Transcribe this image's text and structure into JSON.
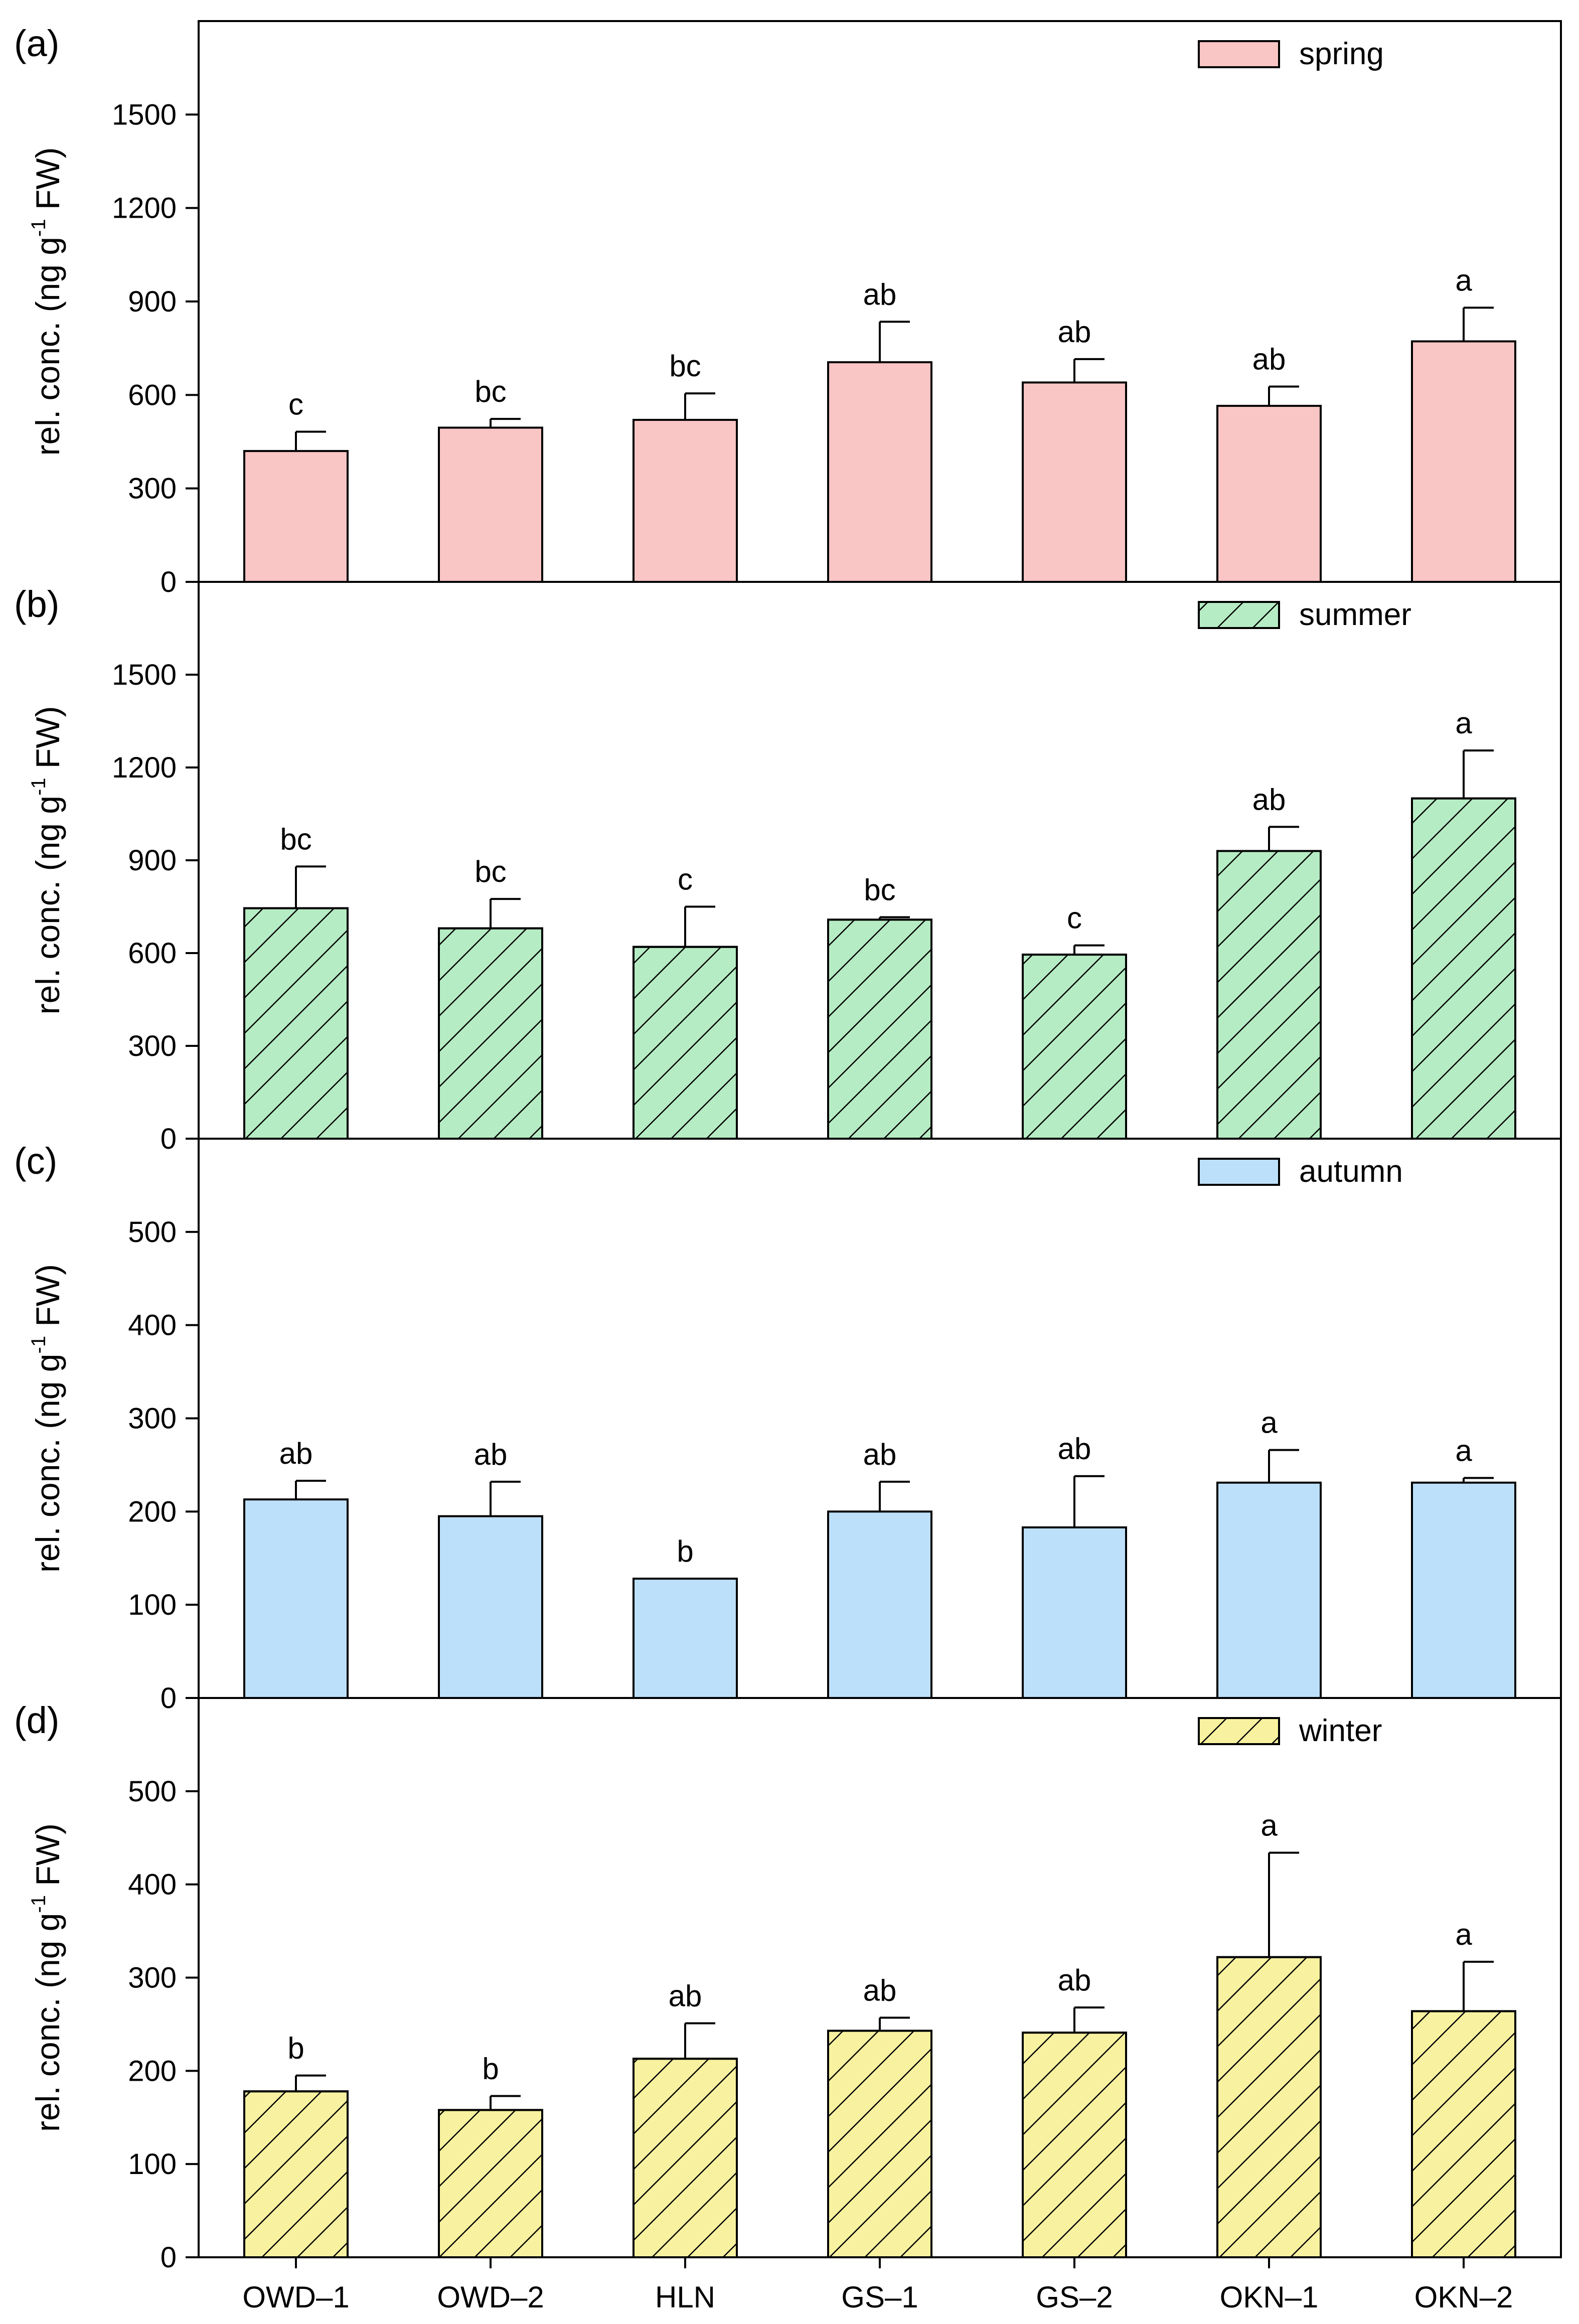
{
  "chart_data": {
    "type": "bar",
    "categories": [
      "OWD–1",
      "OWD–2",
      "HLN",
      "GS–1",
      "GS–2",
      "OKN–1",
      "OKN–2"
    ],
    "ylabel": {
      "pre": "rel. conc. (ng g",
      "sup": "-1",
      "post": " FW)"
    },
    "panels": [
      {
        "label": "(a)",
        "season": "spring",
        "fill": "#f9c5c5",
        "hatch": false,
        "ylim": [
          0,
          1800
        ],
        "yticks": [
          0,
          300,
          600,
          900,
          1200,
          1500
        ],
        "values": [
          420,
          495,
          520,
          705,
          640,
          565,
          772
        ],
        "errors": [
          62,
          28,
          85,
          130,
          75,
          62,
          108
        ],
        "letters": [
          "c",
          "bc",
          "bc",
          "ab",
          "ab",
          "ab",
          "a"
        ]
      },
      {
        "label": "(b)",
        "season": "summer",
        "fill": "#b6ecc4",
        "hatch": true,
        "ylim": [
          0,
          1800
        ],
        "yticks": [
          0,
          300,
          600,
          900,
          1200,
          1500
        ],
        "values": [
          745,
          680,
          620,
          708,
          595,
          930,
          1100
        ],
        "errors": [
          135,
          95,
          130,
          8,
          30,
          78,
          155
        ],
        "letters": [
          "bc",
          "bc",
          "c",
          "bc",
          "c",
          "ab",
          "a"
        ]
      },
      {
        "label": "(c)",
        "season": "autumn",
        "fill": "#bde0fa",
        "hatch": false,
        "ylim": [
          0,
          600
        ],
        "yticks": [
          0,
          100,
          200,
          300,
          400,
          500
        ],
        "values": [
          213,
          195,
          128,
          200,
          183,
          231,
          231
        ],
        "errors": [
          20,
          37,
          0,
          32,
          55,
          35,
          5
        ],
        "letters": [
          "ab",
          "ab",
          "b",
          "ab",
          "ab",
          "a",
          "a"
        ]
      },
      {
        "label": "(d)",
        "season": "winter",
        "fill": "#f8f2a0",
        "hatch": true,
        "ylim": [
          0,
          600
        ],
        "yticks": [
          0,
          100,
          200,
          300,
          400,
          500
        ],
        "values": [
          178,
          158,
          213,
          243,
          241,
          322,
          264
        ],
        "errors": [
          17,
          15,
          38,
          14,
          27,
          112,
          53
        ],
        "letters": [
          "b",
          "b",
          "ab",
          "ab",
          "ab",
          "a",
          "a"
        ]
      }
    ]
  }
}
